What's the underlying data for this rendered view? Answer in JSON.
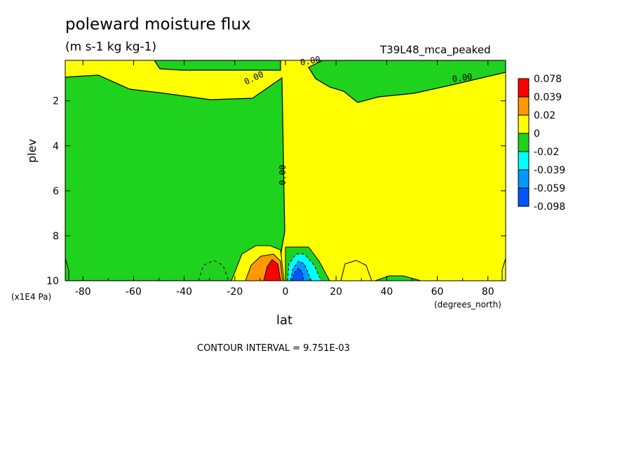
{
  "title": "poleward moisture flux",
  "units": "(m s-1 kg kg-1)",
  "run_label": "T39L48_mca_peaked",
  "xlabel": "lat",
  "ylabel": "plev",
  "y_units": "(x1E4 Pa)",
  "x_units": "(degrees_north)",
  "contour_interval": "CONTOUR INTERVAL = 9.751E-03",
  "colors": {
    "neg_dark": "#0055ff",
    "neg_mid": "#0099ff",
    "neg_light": "#00ffff",
    "neg_small": "#1ed21e",
    "pos_small": "#ffff00",
    "pos_mid": "#ff9900",
    "pos_high": "#ff0000"
  },
  "chart_data": {
    "type": "heatmap",
    "xlabel": "lat",
    "ylabel": "plev",
    "xlim": [
      -87,
      87
    ],
    "ylim": [
      10,
      0.2
    ],
    "x_ticks": [
      -80,
      -60,
      -40,
      -20,
      0,
      20,
      40,
      60,
      80
    ],
    "y_ticks": [
      2,
      4,
      6,
      8,
      10
    ],
    "colorbar": {
      "labels": [
        "0.078",
        "0.039",
        "0.02",
        "0",
        "-0.02",
        "-0.039",
        "-0.059",
        "-0.098"
      ],
      "colors": [
        "#ff0000",
        "#ff9900",
        "#ffff00",
        "#1ed21e",
        "#00ffff",
        "#0099ff",
        "#0055ff"
      ]
    },
    "contour_labels": [
      {
        "text": "0.00",
        "lat": -12,
        "plev": 1.1
      },
      {
        "text": "0.00",
        "lat": 10,
        "plev": 0.35
      },
      {
        "text": "0.00",
        "lat": 70,
        "plev": 1.1
      },
      {
        "text": "0.00",
        "lat": 0,
        "plev": 5.3
      }
    ],
    "regions": [
      {
        "sign": "negative",
        "level": "small",
        "lat_range": [
          -87,
          0
        ],
        "plev_range": [
          0.8,
          10
        ],
        "note": "green"
      },
      {
        "sign": "positive",
        "level": "small",
        "lat_range": [
          0,
          87
        ],
        "plev_range": [
          0.2,
          10
        ],
        "note": "yellow"
      },
      {
        "sign": "positive",
        "level": "high",
        "lat_range": [
          -10,
          -2
        ],
        "plev_range": [
          8.8,
          10
        ],
        "peak": 0.078
      },
      {
        "sign": "negative",
        "level": "mid",
        "lat_range": [
          2,
          14
        ],
        "plev_range": [
          8.8,
          10
        ],
        "peak": -0.098
      }
    ]
  }
}
